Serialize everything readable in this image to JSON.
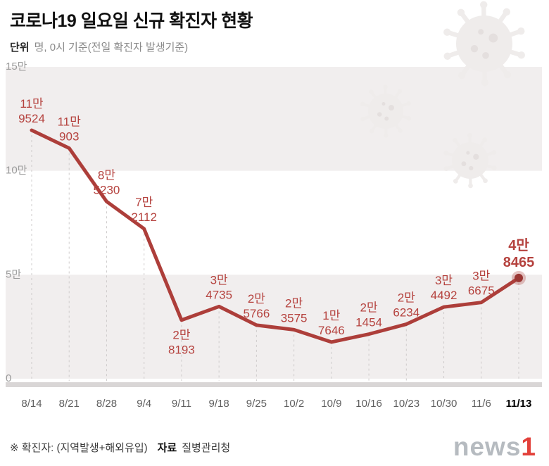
{
  "header": {
    "title": "코로나19 일요일 신규 확진자 현황",
    "unit_label": "단위",
    "unit_text": "명, 0시 기준(전일 확진자 발생기준)"
  },
  "footer": {
    "note": "※ 확진자: (지역발생+해외유입)",
    "source_label": "자료",
    "source_text": "질병관리청",
    "logo_news": "news",
    "logo_one": "1"
  },
  "chart_data": {
    "type": "line",
    "title": "코로나19 일요일 신규 확진자 현황",
    "unit": "명, 0시 기준(전일 확진자 발생기준)",
    "categories": [
      "8/14",
      "8/21",
      "8/28",
      "9/4",
      "9/11",
      "9/18",
      "9/25",
      "10/2",
      "10/9",
      "10/16",
      "10/23",
      "10/30",
      "11/6",
      "11/13"
    ],
    "values": [
      119524,
      110903,
      85230,
      72112,
      28193,
      34735,
      25766,
      23575,
      17646,
      21454,
      26234,
      34492,
      36675,
      48465
    ],
    "point_labels": [
      [
        "11만",
        "9524"
      ],
      [
        "11만",
        "903"
      ],
      [
        "8만",
        "5230"
      ],
      [
        "7만",
        "2112"
      ],
      [
        "2만",
        "8193"
      ],
      [
        "3만",
        "4735"
      ],
      [
        "2만",
        "5766"
      ],
      [
        "2만",
        "3575"
      ],
      [
        "1만",
        "7646"
      ],
      [
        "2만",
        "1454"
      ],
      [
        "2만",
        "6234"
      ],
      [
        "3만",
        "4492"
      ],
      [
        "3만",
        "6675"
      ],
      [
        "4만",
        "8465"
      ]
    ],
    "label_positions": [
      "above",
      "above",
      "above",
      "above",
      "below",
      "above",
      "above",
      "above",
      "above",
      "above",
      "above",
      "above",
      "above",
      "above"
    ],
    "highlight_index": 13,
    "ylim": [
      0,
      150000
    ],
    "y_ticks": [
      {
        "label": "15만",
        "value": 150000
      },
      {
        "label": "10만",
        "value": 100000
      },
      {
        "label": "5만",
        "value": 50000
      },
      {
        "label": "0",
        "value": 0
      }
    ],
    "grid": "alternating-bands",
    "legend": "none",
    "colors": {
      "line": "#ad3e3a",
      "point_label": "#b5423e",
      "highlight_marker": "#9a3734",
      "band": "#f1eeee",
      "axis_bar": "#d9d6d6",
      "dash_guide": "#cfcccc",
      "x_label": "#5f5f5f",
      "x_label_highlight": "#000000",
      "y_label": "#9b9b9b",
      "virus_decoration": "#efeceb"
    }
  }
}
